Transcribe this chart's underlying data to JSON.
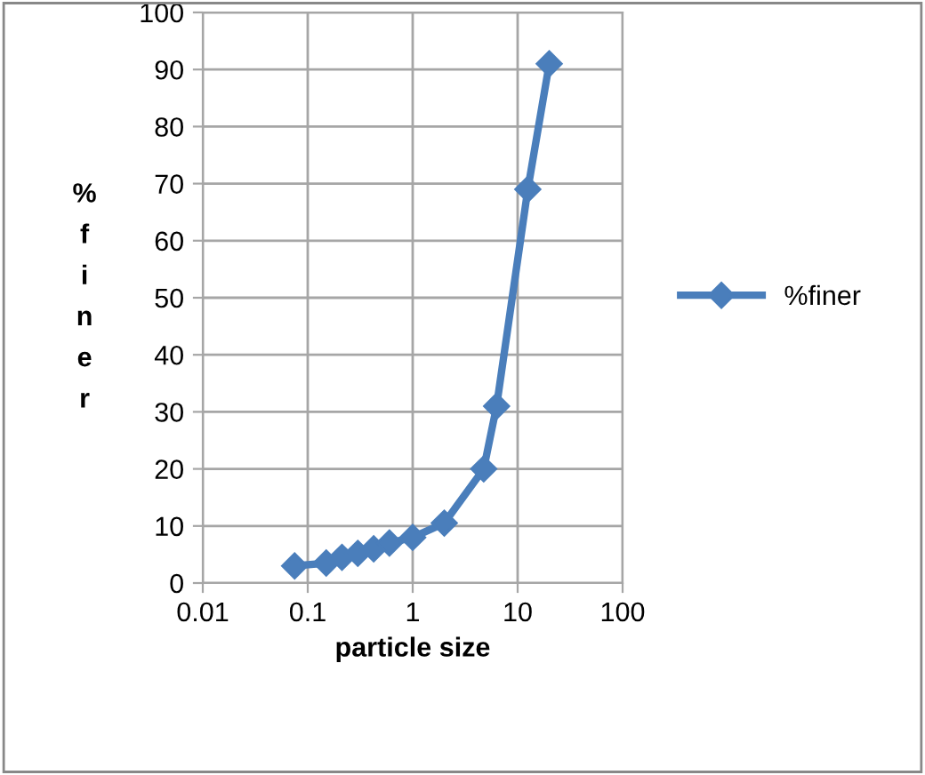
{
  "chart_data": {
    "type": "line",
    "xlabel": "particle size",
    "ylabel": "%finer",
    "log": "x",
    "xlim": [
      0.01,
      100
    ],
    "xticks": [
      0.01,
      0.1,
      1,
      10,
      100
    ],
    "ylim": [
      0,
      100
    ],
    "yticks": [
      0,
      10,
      20,
      30,
      40,
      50,
      60,
      70,
      80,
      90,
      100
    ],
    "grid": true,
    "legend": "right",
    "marker": "diamond",
    "line_style": "solid",
    "series": [
      {
        "name": "%finer",
        "color": "#4a7ebb",
        "x": [
          0.075,
          0.15,
          0.212,
          0.3,
          0.425,
          0.6,
          1,
          2,
          4.75,
          6.3,
          12.5,
          20
        ],
        "values": [
          3,
          3.5,
          4.5,
          5.2,
          6,
          7,
          8,
          10.5,
          20,
          31,
          69,
          91
        ]
      }
    ]
  }
}
